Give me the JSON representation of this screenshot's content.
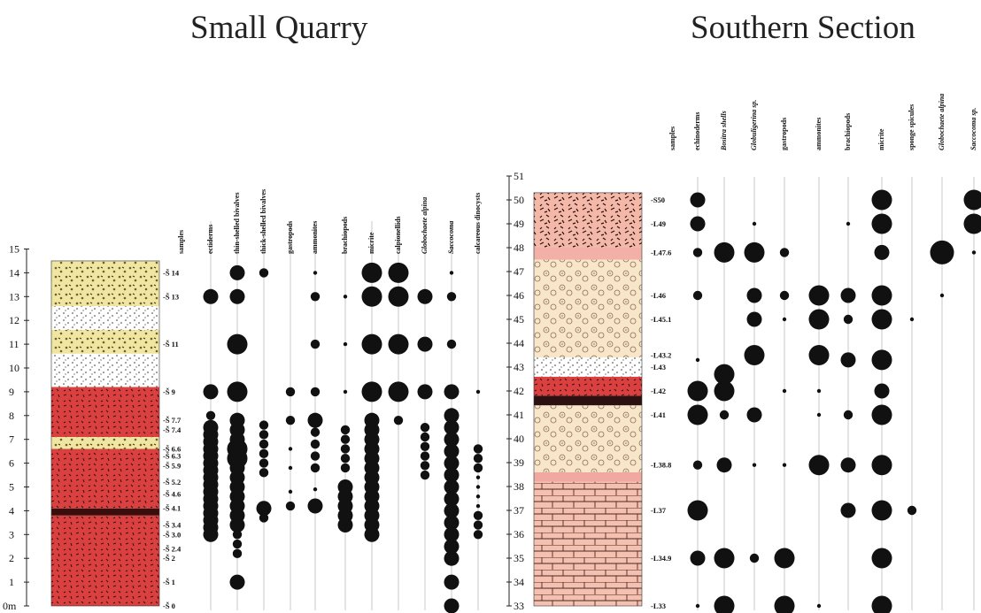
{
  "titles": {
    "left": "Small Quarry",
    "right": "Southern Section"
  },
  "left_section": {
    "axis_ticks": [
      "0m",
      "1",
      "2",
      "3",
      "4",
      "5",
      "6",
      "7",
      "8",
      "9",
      "10",
      "11",
      "12",
      "13",
      "14",
      "15"
    ],
    "sample_labels": [
      {
        "label": "-Š 14",
        "m": 14
      },
      {
        "label": "-Š 13",
        "m": 13
      },
      {
        "label": "-Š 11",
        "m": 11
      },
      {
        "label": "-Š 9",
        "m": 9
      },
      {
        "label": "-Š 7.7",
        "m": 7.8
      },
      {
        "label": "-Š 7.4",
        "m": 7.4
      },
      {
        "label": "-Š 6.6",
        "m": 6.6
      },
      {
        "label": "-Š 6.3",
        "m": 6.3
      },
      {
        "label": "-Š 5.9",
        "m": 5.9
      },
      {
        "label": "-Š 5.2",
        "m": 5.2
      },
      {
        "label": "-Š 4.6",
        "m": 4.7
      },
      {
        "label": "-Š 4.1",
        "m": 4.1
      },
      {
        "label": "-Š 3.4",
        "m": 3.4
      },
      {
        "label": "-Š 3.0",
        "m": 3.0
      },
      {
        "label": "-Š 2.4",
        "m": 2.4
      },
      {
        "label": "-Š 2",
        "m": 2
      },
      {
        "label": "-Š 1",
        "m": 1
      },
      {
        "label": "-Š 0",
        "m": 0
      }
    ],
    "headers": [
      {
        "text": "samples",
        "italic": false
      },
      {
        "text": "ectiderms",
        "italic": false
      },
      {
        "text": "thin-shelled bivalves",
        "italic": false
      },
      {
        "text": "thick-shelled bivalves",
        "italic": false
      },
      {
        "text": "gastropods",
        "italic": false
      },
      {
        "text": "ammonites",
        "italic": false
      },
      {
        "text": "brachiopods",
        "italic": false
      },
      {
        "text": "micrite",
        "italic": false
      },
      {
        "text": "calpionellids",
        "italic": false
      },
      {
        "text": "Globochaete alpina",
        "italic": true
      },
      {
        "text": "Saccocoma",
        "italic": true
      },
      {
        "text": "calcareous dinocysts",
        "italic": false
      }
    ],
    "abundance": [
      {
        "col": 1,
        "dots": [
          [
            13,
            3
          ],
          [
            9,
            3
          ],
          [
            8,
            2
          ],
          [
            7.5,
            3
          ],
          [
            7.2,
            3
          ],
          [
            6.9,
            3
          ],
          [
            6.6,
            3
          ],
          [
            6.3,
            3
          ],
          [
            6,
            3
          ],
          [
            5.7,
            3
          ],
          [
            5.4,
            3
          ],
          [
            5.1,
            3
          ],
          [
            4.8,
            3
          ],
          [
            4.5,
            3
          ],
          [
            4.2,
            3
          ],
          [
            3.9,
            3
          ],
          [
            3.6,
            3
          ],
          [
            3.3,
            3
          ],
          [
            3,
            3
          ]
        ]
      },
      {
        "col": 2,
        "dots": [
          [
            14,
            3
          ],
          [
            13,
            3
          ],
          [
            11,
            4
          ],
          [
            9,
            4
          ],
          [
            7.8,
            3
          ],
          [
            7.4,
            3
          ],
          [
            7,
            3
          ],
          [
            6.6,
            4
          ],
          [
            6.2,
            4
          ],
          [
            5.8,
            3
          ],
          [
            5.4,
            3
          ],
          [
            5,
            3
          ],
          [
            4.6,
            3
          ],
          [
            4.2,
            3
          ],
          [
            3.8,
            3
          ],
          [
            3.4,
            3
          ],
          [
            3,
            2
          ],
          [
            2.6,
            2
          ],
          [
            2.2,
            2
          ],
          [
            1,
            3
          ]
        ]
      },
      {
        "col": 3,
        "dots": [
          [
            14,
            2
          ],
          [
            7.6,
            2
          ],
          [
            7.2,
            2
          ],
          [
            6.8,
            2
          ],
          [
            6.4,
            2
          ],
          [
            6,
            2
          ],
          [
            5.6,
            2
          ],
          [
            4.1,
            3
          ],
          [
            3.7,
            2
          ]
        ]
      },
      {
        "col": 4,
        "dots": [
          [
            9,
            2
          ],
          [
            7.8,
            2
          ],
          [
            6.6,
            1
          ],
          [
            5.8,
            1
          ],
          [
            4.8,
            1
          ],
          [
            4.2,
            2
          ]
        ]
      },
      {
        "col": 5,
        "dots": [
          [
            14,
            1
          ],
          [
            13,
            2
          ],
          [
            11,
            2
          ],
          [
            9,
            2
          ],
          [
            7.8,
            3
          ],
          [
            7.3,
            2
          ],
          [
            6.8,
            2
          ],
          [
            6.3,
            2
          ],
          [
            5.8,
            2
          ],
          [
            4.9,
            1
          ],
          [
            4.2,
            3
          ]
        ]
      },
      {
        "col": 6,
        "dots": [
          [
            13,
            1
          ],
          [
            11,
            1
          ],
          [
            9,
            1
          ],
          [
            7.4,
            2
          ],
          [
            7,
            2
          ],
          [
            6.6,
            2
          ],
          [
            6.2,
            2
          ],
          [
            5.8,
            2
          ],
          [
            5,
            3
          ],
          [
            4.6,
            3
          ],
          [
            4.2,
            3
          ],
          [
            3.8,
            3
          ],
          [
            3.4,
            3
          ]
        ]
      },
      {
        "col": 7,
        "dots": [
          [
            14,
            4
          ],
          [
            13,
            4
          ],
          [
            11,
            4
          ],
          [
            9,
            4
          ],
          [
            7.8,
            3
          ],
          [
            7.4,
            3
          ],
          [
            7,
            3
          ],
          [
            6.6,
            3
          ],
          [
            6.2,
            3
          ],
          [
            5.8,
            3
          ],
          [
            5.4,
            3
          ],
          [
            5,
            3
          ],
          [
            4.6,
            3
          ],
          [
            4.2,
            3
          ],
          [
            3.8,
            3
          ],
          [
            3.4,
            3
          ],
          [
            3,
            3
          ]
        ]
      },
      {
        "col": 8,
        "dots": [
          [
            14,
            4
          ],
          [
            13,
            4
          ],
          [
            11,
            4
          ],
          [
            9,
            4
          ],
          [
            7.8,
            2
          ]
        ]
      },
      {
        "col": 9,
        "dots": [
          [
            13,
            3
          ],
          [
            11,
            3
          ],
          [
            9,
            3
          ],
          [
            7.5,
            2
          ],
          [
            7.1,
            2
          ],
          [
            6.7,
            2
          ],
          [
            6.3,
            2
          ],
          [
            5.9,
            2
          ],
          [
            5.5,
            2
          ]
        ]
      },
      {
        "col": 10,
        "dots": [
          [
            14,
            1
          ],
          [
            13,
            2
          ],
          [
            11,
            2
          ],
          [
            9,
            3
          ],
          [
            8,
            3
          ],
          [
            7.5,
            3
          ],
          [
            7,
            3
          ],
          [
            6.5,
            3
          ],
          [
            6,
            3
          ],
          [
            5.5,
            3
          ],
          [
            5,
            3
          ],
          [
            4.5,
            3
          ],
          [
            4,
            3
          ],
          [
            3.5,
            3
          ],
          [
            3,
            3
          ],
          [
            2.5,
            3
          ],
          [
            2,
            3
          ],
          [
            1,
            3
          ],
          [
            0,
            3
          ]
        ]
      },
      {
        "col": 11,
        "dots": [
          [
            9,
            1
          ],
          [
            6.6,
            2
          ],
          [
            6.2,
            2
          ],
          [
            5.8,
            2
          ],
          [
            5.4,
            1
          ],
          [
            5,
            1
          ],
          [
            4.6,
            1
          ],
          [
            4.2,
            1
          ],
          [
            3.8,
            2
          ],
          [
            3.4,
            2
          ],
          [
            3,
            2
          ]
        ]
      }
    ]
  },
  "right_section": {
    "axis_ticks": [
      "33",
      "34",
      "35",
      "36",
      "37",
      "38",
      "39",
      "40",
      "41",
      "42",
      "43",
      "44",
      "45",
      "46",
      "47",
      "48",
      "49",
      "50",
      "51"
    ],
    "sample_labels": [
      {
        "label": "-S50",
        "m": 50
      },
      {
        "label": "-L49",
        "m": 49
      },
      {
        "label": "-L47.6",
        "m": 47.8
      },
      {
        "label": "-L46",
        "m": 46
      },
      {
        "label": "-L45.1",
        "m": 45
      },
      {
        "label": "-L43.2",
        "m": 43.5
      },
      {
        "label": "-L43",
        "m": 43
      },
      {
        "label": "-L42",
        "m": 42
      },
      {
        "label": "-L41",
        "m": 41
      },
      {
        "label": "-L38.8",
        "m": 38.9
      },
      {
        "label": "-L37",
        "m": 37
      },
      {
        "label": "-L34.9",
        "m": 35
      },
      {
        "label": "-L33",
        "m": 33
      }
    ],
    "headers": [
      {
        "text": "samples",
        "italic": false
      },
      {
        "text": "echinoderms",
        "italic": false
      },
      {
        "text": "Bositra shells",
        "italic": true
      },
      {
        "text": "Globuligerina sp.",
        "italic": true
      },
      {
        "text": "gastropods",
        "italic": false
      },
      {
        "text": "ammonites",
        "italic": false
      },
      {
        "text": "brachiopods",
        "italic": false
      },
      {
        "text": "micrite",
        "italic": false
      },
      {
        "text": "sponge spicules",
        "italic": false
      },
      {
        "text": "Globochaete alpina",
        "italic": true
      },
      {
        "text": "Saccocoma sp.",
        "italic": true
      }
    ],
    "abundance": [
      {
        "col": 1,
        "dots": [
          [
            50,
            3
          ],
          [
            49,
            3
          ],
          [
            47.8,
            2
          ],
          [
            46,
            2
          ],
          [
            43.3,
            1
          ],
          [
            42,
            4
          ],
          [
            41,
            4
          ],
          [
            38.9,
            2
          ],
          [
            37,
            4
          ],
          [
            35,
            3
          ],
          [
            33,
            1
          ]
        ]
      },
      {
        "col": 2,
        "dots": [
          [
            47.8,
            4
          ],
          [
            42.7,
            4
          ],
          [
            42,
            4
          ],
          [
            41,
            2
          ],
          [
            38.9,
            3
          ],
          [
            35,
            4
          ],
          [
            33,
            4
          ]
        ]
      },
      {
        "col": 3,
        "dots": [
          [
            49,
            1
          ],
          [
            47.8,
            4
          ],
          [
            46,
            3
          ],
          [
            45,
            3
          ],
          [
            43.5,
            4
          ],
          [
            41,
            3
          ],
          [
            38.9,
            1
          ],
          [
            35,
            2
          ]
        ]
      },
      {
        "col": 4,
        "dots": [
          [
            47.8,
            2
          ],
          [
            46,
            2
          ],
          [
            45,
            1
          ],
          [
            42,
            1
          ],
          [
            38.9,
            1
          ],
          [
            35,
            4
          ],
          [
            33,
            4
          ]
        ]
      },
      {
        "col": 5,
        "dots": [
          [
            46,
            4
          ],
          [
            45,
            4
          ],
          [
            43.5,
            4
          ],
          [
            42,
            1
          ],
          [
            41,
            1
          ],
          [
            38.9,
            4
          ],
          [
            33,
            1
          ]
        ]
      },
      {
        "col": 6,
        "dots": [
          [
            49,
            1
          ],
          [
            46,
            3
          ],
          [
            45,
            2
          ],
          [
            43.3,
            3
          ],
          [
            41,
            2
          ],
          [
            38.9,
            3
          ],
          [
            37,
            3
          ]
        ]
      },
      {
        "col": 7,
        "dots": [
          [
            50,
            4
          ],
          [
            49,
            4
          ],
          [
            47.8,
            3
          ],
          [
            46,
            4
          ],
          [
            45,
            4
          ],
          [
            43.3,
            4
          ],
          [
            42,
            3
          ],
          [
            41,
            4
          ],
          [
            38.9,
            4
          ],
          [
            37,
            4
          ],
          [
            35,
            4
          ],
          [
            33,
            4
          ]
        ]
      },
      {
        "col": 8,
        "dots": [
          [
            45,
            1
          ],
          [
            37,
            2
          ]
        ]
      },
      {
        "col": 9,
        "dots": [
          [
            47.8,
            5
          ],
          [
            46,
            1
          ]
        ]
      },
      {
        "col": 10,
        "dots": [
          [
            50,
            4
          ],
          [
            49,
            4
          ],
          [
            47.8,
            1
          ]
        ]
      }
    ]
  },
  "colors": {
    "ink": "#111111",
    "grid": "#c8c8c8",
    "red": "#d9403f",
    "pink": "#f2b5a6",
    "yellow": "#f3e49c",
    "cream": "#f6e7c5"
  }
}
